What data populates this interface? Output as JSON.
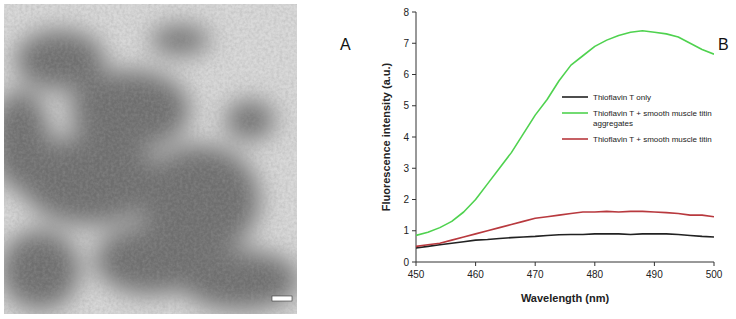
{
  "panel_labels": [
    "A",
    "B"
  ],
  "chart_data": {
    "type": "line",
    "x_label": "Wavelength (nm)",
    "y_label": "Fluorescence intensity (a.u.)",
    "x": [
      450,
      452,
      454,
      456,
      458,
      460,
      462,
      464,
      466,
      468,
      470,
      472,
      474,
      476,
      478,
      480,
      482,
      484,
      486,
      488,
      490,
      492,
      494,
      496,
      498,
      500
    ],
    "series": [
      {
        "name": "Thioflavin T only",
        "color": "#222222",
        "values": [
          0.45,
          0.5,
          0.55,
          0.6,
          0.65,
          0.7,
          0.72,
          0.75,
          0.78,
          0.8,
          0.82,
          0.85,
          0.87,
          0.88,
          0.88,
          0.9,
          0.9,
          0.9,
          0.88,
          0.9,
          0.9,
          0.9,
          0.88,
          0.85,
          0.82,
          0.8
        ]
      },
      {
        "name": "Thioflavin T + smooth muscle titin aggregates",
        "color": "#4fd24f",
        "values": [
          0.85,
          0.95,
          1.1,
          1.3,
          1.6,
          2.0,
          2.5,
          3.0,
          3.5,
          4.1,
          4.7,
          5.2,
          5.8,
          6.3,
          6.6,
          6.9,
          7.1,
          7.25,
          7.35,
          7.4,
          7.35,
          7.3,
          7.2,
          7.0,
          6.8,
          6.65
        ]
      },
      {
        "name": "Thioflavin T + smooth muscle titin",
        "color": "#b8393e",
        "values": [
          0.5,
          0.55,
          0.6,
          0.7,
          0.8,
          0.9,
          1.0,
          1.1,
          1.2,
          1.3,
          1.4,
          1.45,
          1.5,
          1.55,
          1.6,
          1.6,
          1.62,
          1.6,
          1.62,
          1.62,
          1.6,
          1.58,
          1.55,
          1.5,
          1.5,
          1.45
        ]
      }
    ],
    "xlim": [
      450,
      500
    ],
    "ylim": [
      0,
      8
    ],
    "xticks": [
      450,
      460,
      470,
      480,
      490,
      500
    ],
    "yticks": [
      0,
      1,
      2,
      3,
      4,
      5,
      6,
      7,
      8
    ],
    "grid": false,
    "legend": "upper right"
  }
}
